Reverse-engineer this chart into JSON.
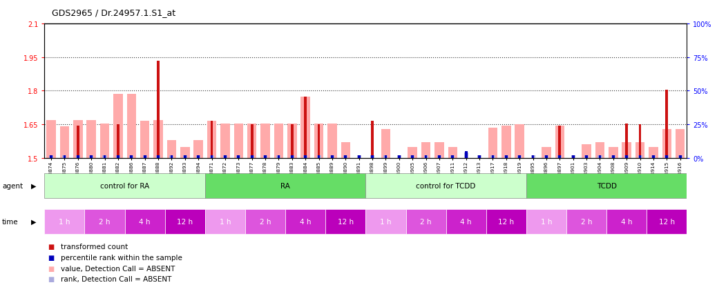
{
  "title": "GDS2965 / Dr.24957.1.S1_at",
  "samples": [
    "GSM228874",
    "GSM228875",
    "GSM228876",
    "GSM228880",
    "GSM228881",
    "GSM228882",
    "GSM228886",
    "GSM228887",
    "GSM228888",
    "GSM228892",
    "GSM228893",
    "GSM228894",
    "GSM228871",
    "GSM228872",
    "GSM228873",
    "GSM228877",
    "GSM228878",
    "GSM228879",
    "GSM228883",
    "GSM228884",
    "GSM228885",
    "GSM228889",
    "GSM228890",
    "GSM228891",
    "GSM228898",
    "GSM228899",
    "GSM228900",
    "GSM228905",
    "GSM228906",
    "GSM228907",
    "GSM228911",
    "GSM228912",
    "GSM228913",
    "GSM228917",
    "GSM228918",
    "GSM228919",
    "GSM228895",
    "GSM228896",
    "GSM228897",
    "GSM228901",
    "GSM228903",
    "GSM228904",
    "GSM228908",
    "GSM228909",
    "GSM228910",
    "GSM228914",
    "GSM228915",
    "GSM228916"
  ],
  "red_values": [
    1.5,
    1.5,
    1.645,
    1.5,
    1.5,
    1.65,
    1.5,
    1.5,
    1.935,
    1.5,
    1.5,
    1.5,
    1.665,
    1.5,
    1.5,
    1.65,
    1.5,
    1.5,
    1.65,
    1.775,
    1.65,
    1.5,
    1.5,
    1.5,
    1.665,
    1.5,
    1.5,
    1.5,
    1.5,
    1.5,
    1.5,
    1.5,
    1.5,
    1.5,
    1.5,
    1.5,
    1.5,
    1.5,
    1.645,
    1.5,
    1.5,
    1.5,
    1.5,
    1.655,
    1.65,
    1.5,
    1.805,
    1.5
  ],
  "pink_values": [
    1.67,
    1.64,
    1.67,
    1.67,
    1.655,
    1.785,
    1.785,
    1.665,
    1.67,
    1.58,
    1.55,
    1.58,
    1.665,
    1.655,
    1.655,
    1.655,
    1.655,
    1.655,
    1.655,
    1.775,
    1.655,
    1.655,
    1.57,
    1.5,
    1.5,
    1.63,
    1.5,
    1.55,
    1.57,
    1.57,
    1.55,
    1.5,
    1.5,
    1.635,
    1.645,
    1.65,
    1.5,
    1.55,
    1.645,
    1.5,
    1.56,
    1.57,
    1.55,
    1.57,
    1.57,
    1.55,
    1.63,
    1.63
  ],
  "blue_values": [
    2,
    2,
    2,
    2,
    2,
    2,
    2,
    2,
    2,
    2,
    2,
    2,
    2,
    2,
    2,
    2,
    2,
    2,
    2,
    2,
    2,
    2,
    2,
    2,
    2,
    2,
    2,
    2,
    2,
    2,
    2,
    5,
    2,
    2,
    2,
    2,
    2,
    2,
    2,
    2,
    2,
    2,
    2,
    2,
    2,
    2,
    2,
    2
  ],
  "lavender_values": [
    2,
    2,
    2,
    2,
    2,
    2,
    2,
    2,
    2,
    2,
    2,
    2,
    2,
    2,
    2,
    2,
    2,
    2,
    2,
    2,
    2,
    2,
    2,
    2,
    2,
    2,
    2,
    2,
    2,
    2,
    2,
    4,
    2,
    2,
    2,
    2,
    2,
    2,
    2,
    2,
    2,
    2,
    2,
    2,
    2,
    2,
    2,
    2
  ],
  "ylim": [
    1.5,
    2.1
  ],
  "y_ticks_left": [
    1.5,
    1.65,
    1.8,
    1.95,
    2.1
  ],
  "y_ticks_right": [
    0,
    25,
    50,
    75,
    100
  ],
  "agent_groups": [
    {
      "label": "control for RA",
      "start": 0,
      "end": 11
    },
    {
      "label": "RA",
      "start": 12,
      "end": 23
    },
    {
      "label": "control for TCDD",
      "start": 24,
      "end": 35
    },
    {
      "label": "TCDD",
      "start": 36,
      "end": 47
    }
  ],
  "time_groups": [
    {
      "label": "1 h",
      "start": 0,
      "end": 2
    },
    {
      "label": "2 h",
      "start": 3,
      "end": 5
    },
    {
      "label": "4 h",
      "start": 6,
      "end": 8
    },
    {
      "label": "12 h",
      "start": 9,
      "end": 11
    },
    {
      "label": "1 h",
      "start": 12,
      "end": 14
    },
    {
      "label": "2 h",
      "start": 15,
      "end": 17
    },
    {
      "label": "4 h",
      "start": 18,
      "end": 20
    },
    {
      "label": "12 h",
      "start": 21,
      "end": 23
    },
    {
      "label": "1 h",
      "start": 24,
      "end": 26
    },
    {
      "label": "2 h",
      "start": 27,
      "end": 29
    },
    {
      "label": "4 h",
      "start": 30,
      "end": 32
    },
    {
      "label": "12 h",
      "start": 33,
      "end": 35
    },
    {
      "label": "1 h",
      "start": 36,
      "end": 38
    },
    {
      "label": "2 h",
      "start": 39,
      "end": 41
    },
    {
      "label": "4 h",
      "start": 42,
      "end": 44
    },
    {
      "label": "12 h",
      "start": 45,
      "end": 47
    }
  ],
  "agent_light_color": "#ccffcc",
  "agent_dark_color": "#66dd66",
  "time_colors": [
    "#ee99ee",
    "#dd55dd",
    "#cc22cc",
    "#bb00bb"
  ],
  "red_color": "#cc1111",
  "pink_color": "#ffaaaa",
  "blue_color": "#0000bb",
  "lavender_color": "#aaaadd",
  "dotted_color": "#333333"
}
